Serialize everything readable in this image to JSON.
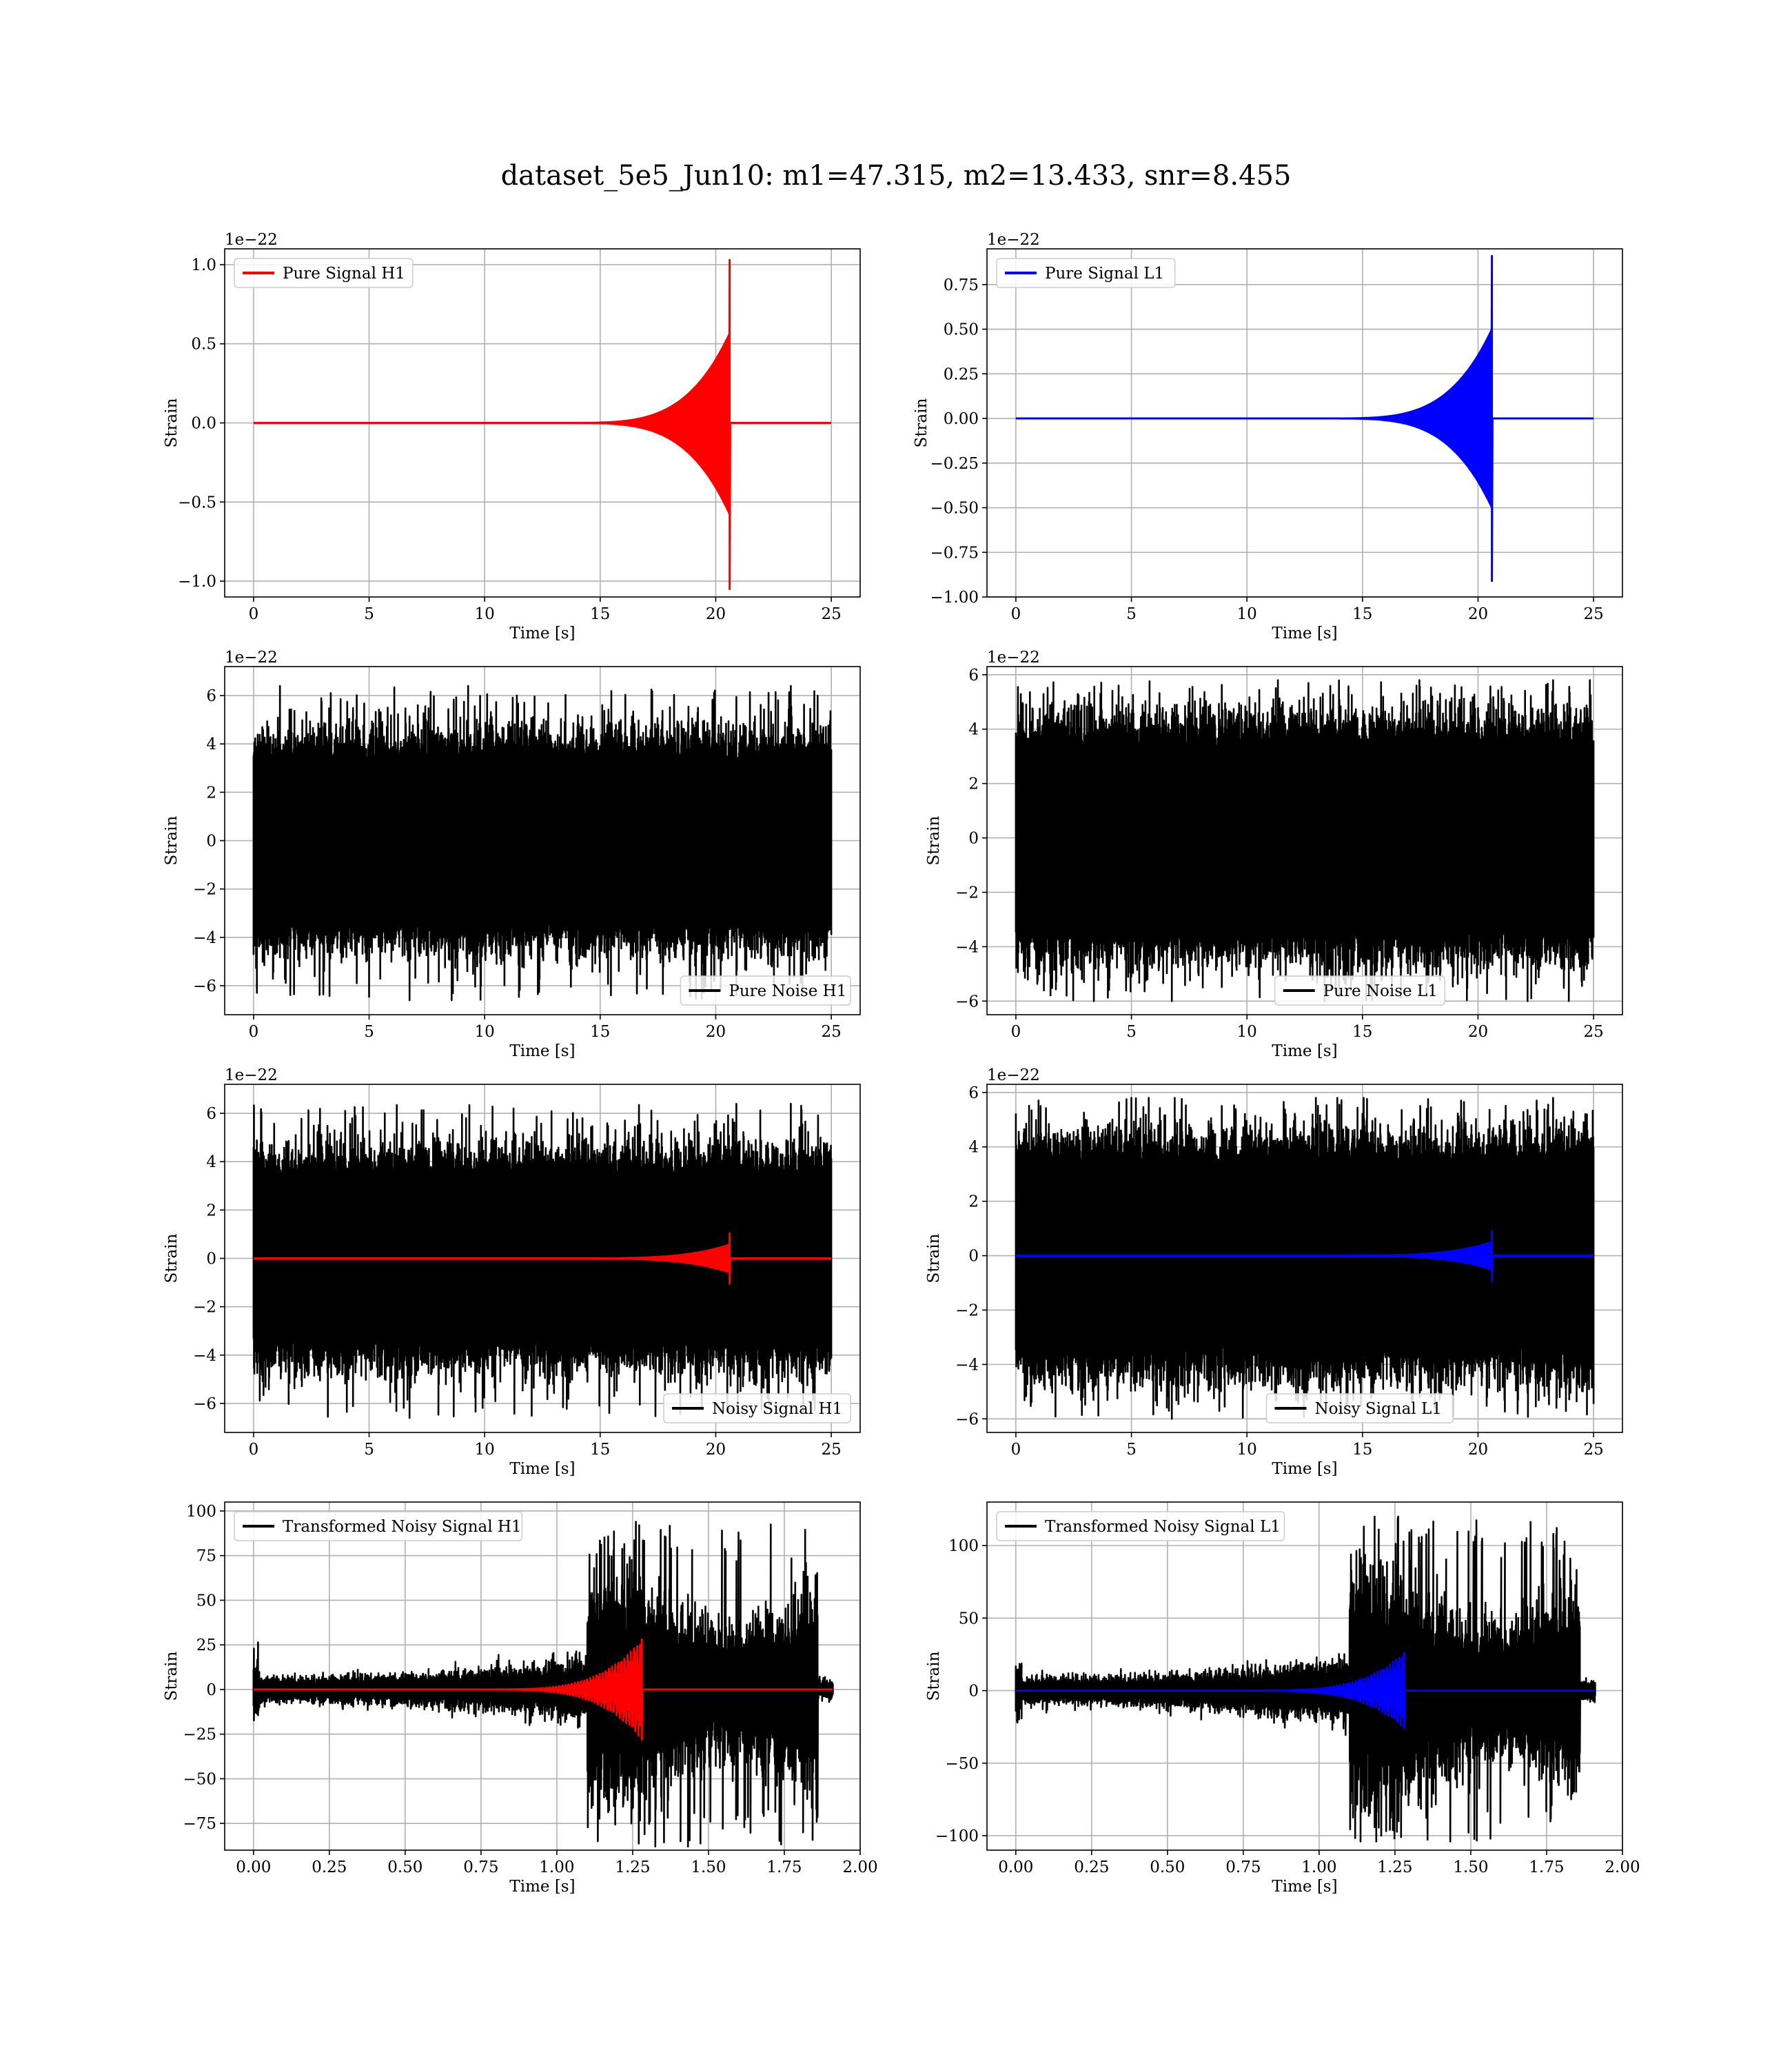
{
  "figure": {
    "title": "dataset_5e5_Jun10: m1=47.315, m2=13.433, snr=8.455"
  },
  "chart_data": [
    {
      "type": "line",
      "id": "pure-signal-h1",
      "xlabel": "Time [s]",
      "ylabel": "Strain",
      "offset_text": "1e−22",
      "xlim": [
        -1.25,
        26.25
      ],
      "ylim": [
        -1.1,
        1.1
      ],
      "xticks": [
        0,
        5,
        10,
        15,
        20,
        25
      ],
      "xtick_labels": [
        "0",
        "5",
        "10",
        "15",
        "20",
        "25"
      ],
      "yticks": [
        -1.0,
        -0.5,
        0.0,
        0.5,
        1.0
      ],
      "ytick_labels": [
        "−1.0",
        "−0.5",
        "0.0",
        "0.5",
        "1.0"
      ],
      "grid": true,
      "legend_position": "top-left",
      "series": [
        {
          "name": "Pure Signal H1",
          "color": "#ff0000",
          "kind": "chirp",
          "x_start": 0,
          "x_end": 25,
          "merger": 20.6,
          "onset": 13,
          "peak_pos": 1.03,
          "peak_neg": -1.05
        }
      ]
    },
    {
      "type": "line",
      "id": "pure-signal-l1",
      "xlabel": "Time [s]",
      "ylabel": "Strain",
      "offset_text": "1e−22",
      "xlim": [
        -1.25,
        26.25
      ],
      "ylim": [
        -1.0,
        0.95
      ],
      "xticks": [
        0,
        5,
        10,
        15,
        20,
        25
      ],
      "xtick_labels": [
        "0",
        "5",
        "10",
        "15",
        "20",
        "25"
      ],
      "yticks": [
        -1.0,
        -0.75,
        -0.5,
        -0.25,
        0.0,
        0.25,
        0.5,
        0.75
      ],
      "ytick_labels": [
        "−1.00",
        "−0.75",
        "−0.50",
        "−0.25",
        "0.00",
        "0.25",
        "0.50",
        "0.75"
      ],
      "grid": true,
      "legend_position": "top-left",
      "series": [
        {
          "name": "Pure Signal L1",
          "color": "#0000ff",
          "kind": "chirp",
          "x_start": 0,
          "x_end": 25,
          "merger": 20.6,
          "onset": 13,
          "peak_pos": 0.91,
          "peak_neg": -0.91
        }
      ]
    },
    {
      "type": "line",
      "id": "pure-noise-h1",
      "xlabel": "Time [s]",
      "ylabel": "Strain",
      "offset_text": "1e−22",
      "xlim": [
        -1.25,
        26.25
      ],
      "ylim": [
        -7.2,
        7.2
      ],
      "xticks": [
        0,
        5,
        10,
        15,
        20,
        25
      ],
      "xtick_labels": [
        "0",
        "5",
        "10",
        "15",
        "20",
        "25"
      ],
      "yticks": [
        -6,
        -4,
        -2,
        0,
        2,
        4,
        6
      ],
      "ytick_labels": [
        "−6",
        "−4",
        "−2",
        "0",
        "2",
        "4",
        "6"
      ],
      "grid": true,
      "legend_position": "bottom-right",
      "series": [
        {
          "name": "Pure Noise H1",
          "color": "#000000",
          "kind": "noise",
          "x_start": 0,
          "x_end": 25,
          "max": 6.4,
          "min": -6.6
        }
      ]
    },
    {
      "type": "line",
      "id": "pure-noise-l1",
      "xlabel": "Time [s]",
      "ylabel": "Strain",
      "offset_text": "1e−22",
      "xlim": [
        -1.25,
        26.25
      ],
      "ylim": [
        -6.5,
        6.3
      ],
      "xticks": [
        0,
        5,
        10,
        15,
        20,
        25
      ],
      "xtick_labels": [
        "0",
        "5",
        "10",
        "15",
        "20",
        "25"
      ],
      "yticks": [
        -6,
        -4,
        -2,
        0,
        2,
        4,
        6
      ],
      "ytick_labels": [
        "−6",
        "−4",
        "−2",
        "0",
        "2",
        "4",
        "6"
      ],
      "grid": true,
      "legend_position": "bottom-center",
      "series": [
        {
          "name": "Pure Noise L1",
          "color": "#000000",
          "kind": "noise",
          "x_start": 0,
          "x_end": 25,
          "max": 5.8,
          "min": -6.0
        }
      ]
    },
    {
      "type": "line",
      "id": "noisy-signal-h1",
      "xlabel": "Time [s]",
      "ylabel": "Strain",
      "offset_text": "1e−22",
      "xlim": [
        -1.25,
        26.25
      ],
      "ylim": [
        -7.2,
        7.2
      ],
      "xticks": [
        0,
        5,
        10,
        15,
        20,
        25
      ],
      "xtick_labels": [
        "0",
        "5",
        "10",
        "15",
        "20",
        "25"
      ],
      "yticks": [
        -6,
        -4,
        -2,
        0,
        2,
        4,
        6
      ],
      "ytick_labels": [
        "−6",
        "−4",
        "−2",
        "0",
        "2",
        "4",
        "6"
      ],
      "grid": true,
      "legend_position": "bottom-right",
      "series": [
        {
          "name": "Noisy Signal H1",
          "color": "#000000",
          "kind": "noise",
          "x_start": 0,
          "x_end": 25,
          "max": 6.4,
          "min": -6.6
        },
        {
          "color": "#ff0000",
          "kind": "chirp",
          "x_start": 0,
          "x_end": 25,
          "merger": 20.6,
          "onset": 13,
          "peak_pos": 1.03,
          "peak_neg": -1.05
        }
      ]
    },
    {
      "type": "line",
      "id": "noisy-signal-l1",
      "xlabel": "Time [s]",
      "ylabel": "Strain",
      "offset_text": "1e−22",
      "xlim": [
        -1.25,
        26.25
      ],
      "ylim": [
        -6.5,
        6.3
      ],
      "xticks": [
        0,
        5,
        10,
        15,
        20,
        25
      ],
      "xtick_labels": [
        "0",
        "5",
        "10",
        "15",
        "20",
        "25"
      ],
      "yticks": [
        -6,
        -4,
        -2,
        0,
        2,
        4,
        6
      ],
      "ytick_labels": [
        "−6",
        "−4",
        "−2",
        "0",
        "2",
        "4",
        "6"
      ],
      "grid": true,
      "legend_position": "bottom-center",
      "series": [
        {
          "name": "Noisy Signal L1",
          "color": "#000000",
          "kind": "noise",
          "x_start": 0,
          "x_end": 25,
          "max": 5.8,
          "min": -6.0
        },
        {
          "color": "#0000ff",
          "kind": "chirp",
          "x_start": 0,
          "x_end": 25,
          "merger": 20.6,
          "onset": 13,
          "peak_pos": 0.91,
          "peak_neg": -0.91
        }
      ]
    },
    {
      "type": "line",
      "id": "transformed-noisy-signal-h1",
      "xlabel": "Time [s]",
      "ylabel": "Strain",
      "offset_text": "",
      "xlim": [
        -0.095,
        2.0
      ],
      "ylim": [
        -90,
        105
      ],
      "xticks": [
        0.0,
        0.25,
        0.5,
        0.75,
        1.0,
        1.25,
        1.5,
        1.75,
        2.0
      ],
      "xtick_labels": [
        "0.00",
        "0.25",
        "0.50",
        "0.75",
        "1.00",
        "1.25",
        "1.50",
        "1.75",
        "2.00"
      ],
      "yticks": [
        -75,
        -50,
        -25,
        0,
        25,
        50,
        75,
        100
      ],
      "ytick_labels": [
        "−75",
        "−50",
        "−25",
        "0",
        "25",
        "50",
        "75",
        "100"
      ],
      "grid": true,
      "legend_position": "top-left",
      "series": [
        {
          "name": "Transformed Noisy Signal H1",
          "color": "#000000",
          "kind": "tnoise",
          "x_start": 0,
          "x_end": 1.91,
          "max": 94,
          "min": -88,
          "knee": 1.1,
          "cut": 1.86
        },
        {
          "color": "#ff0000",
          "kind": "tchirp",
          "x_start": 0,
          "x_end": 1.91,
          "merger": 1.28,
          "onset": 0.7,
          "peak_pos": 28,
          "peak_neg": -28
        }
      ]
    },
    {
      "type": "line",
      "id": "transformed-noisy-signal-l1",
      "xlabel": "Time [s]",
      "ylabel": "Strain",
      "offset_text": "",
      "xlim": [
        -0.095,
        2.0
      ],
      "ylim": [
        -110,
        130
      ],
      "xticks": [
        0.0,
        0.25,
        0.5,
        0.75,
        1.0,
        1.25,
        1.5,
        1.75,
        2.0
      ],
      "xtick_labels": [
        "0.00",
        "0.25",
        "0.50",
        "0.75",
        "1.00",
        "1.25",
        "1.50",
        "1.75",
        "2.00"
      ],
      "yticks": [
        -100,
        -50,
        0,
        50,
        100
      ],
      "ytick_labels": [
        "−100",
        "−50",
        "0",
        "50",
        "100"
      ],
      "grid": true,
      "legend_position": "top-left",
      "series": [
        {
          "name": "Transformed Noisy Signal L1",
          "color": "#000000",
          "kind": "tnoise",
          "x_start": 0,
          "x_end": 1.91,
          "max": 120,
          "min": -104,
          "knee": 1.1,
          "cut": 1.86
        },
        {
          "color": "#0000ff",
          "kind": "tchirp",
          "x_start": 0,
          "x_end": 1.91,
          "merger": 1.28,
          "onset": 0.7,
          "peak_pos": 26,
          "peak_neg": -26
        }
      ]
    }
  ]
}
